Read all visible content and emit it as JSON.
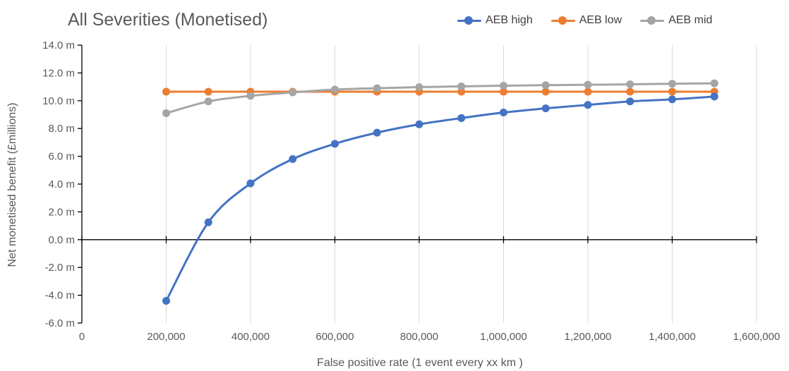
{
  "chart_data": {
    "type": "line",
    "title": "All Severities (Monetised)",
    "xlabel": "False positive rate (1 event every xx km )",
    "ylabel": "Net monetised benefit (£millions)",
    "xlim": [
      0,
      1600000
    ],
    "ylim": [
      -6,
      14
    ],
    "x_ticks": [
      0,
      200000,
      400000,
      600000,
      800000,
      1000000,
      1200000,
      1400000,
      1600000
    ],
    "x_tick_labels": [
      "0",
      "200,000",
      "400,000",
      "600,000",
      "800,000",
      "1,000,000",
      "1,200,000",
      "1,400,000",
      "1,600,000"
    ],
    "y_ticks": [
      -6,
      -4,
      -2,
      0,
      2,
      4,
      6,
      8,
      10,
      12,
      14
    ],
    "y_tick_labels": [
      "-6.0 m",
      "-4.0 m",
      "-2.0 m",
      "0.0 m",
      "2.0 m",
      "4.0 m",
      "6.0 m",
      "8.0 m",
      "10.0 m",
      "12.0 m",
      "14.0 m"
    ],
    "grid": "vertical",
    "legend_position": "top-right",
    "x": [
      200000,
      300000,
      400000,
      500000,
      600000,
      700000,
      800000,
      900000,
      1000000,
      1100000,
      1200000,
      1300000,
      1400000,
      1500000
    ],
    "series": [
      {
        "name": "AEB high",
        "color": "#4472c4",
        "values": [
          -4.4,
          1.25,
          4.05,
          5.8,
          6.9,
          7.7,
          8.3,
          8.75,
          9.15,
          9.45,
          9.7,
          9.95,
          10.1,
          10.3
        ]
      },
      {
        "name": "AEB low",
        "color": "#ed7d31",
        "values": [
          10.65,
          10.65,
          10.65,
          10.65,
          10.65,
          10.65,
          10.65,
          10.65,
          10.65,
          10.65,
          10.65,
          10.65,
          10.65,
          10.65
        ]
      },
      {
        "name": "AEB mid",
        "color": "#a5a5a5",
        "values": [
          9.1,
          9.95,
          10.35,
          10.6,
          10.8,
          10.9,
          10.98,
          11.03,
          11.08,
          11.12,
          11.15,
          11.18,
          11.22,
          11.25
        ]
      }
    ]
  }
}
